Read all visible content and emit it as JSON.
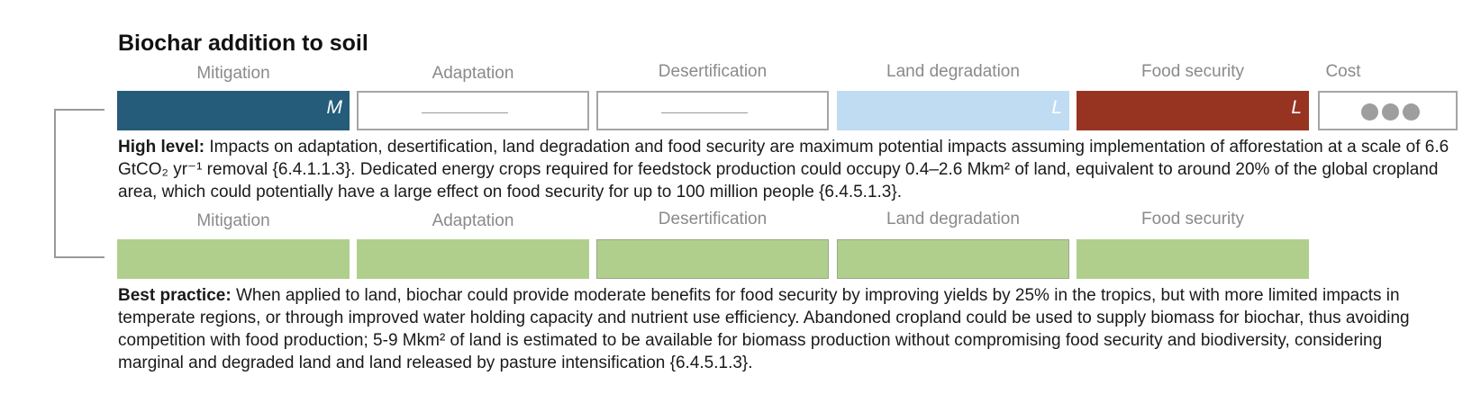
{
  "title": "Biochar addition to soil",
  "row1": {
    "headers": [
      "Mitigation",
      "Adaptation",
      "Desertification",
      "Land degradation",
      "Food security",
      "Cost"
    ],
    "cells": [
      {
        "letter": "M",
        "color": "#245c7a"
      },
      {
        "letter": "",
        "color": "#ffffff"
      },
      {
        "letter": "",
        "color": "#ffffff"
      },
      {
        "letter": "L",
        "color": "#bfdcf2"
      },
      {
        "letter": "L",
        "color": "#973421"
      },
      {
        "letter": "",
        "color": "#ffffff"
      }
    ],
    "cost_level": 3
  },
  "high_level": {
    "label": "High level:",
    "text": " Impacts on adaptation, desertification, land degradation and food security are maximum potential impacts assuming implementation of afforestation at a scale of 6.6 GtCO₂ yr⁻¹ removal {6.4.1.1.3}. Dedicated energy crops required for feedstock production could occupy 0.4–2.6 Mkm² of land, equivalent to around 20% of the global cropland area, which could potentially have a large effect on food security for up to 100 million people {6.4.5.1.3}."
  },
  "row2": {
    "headers": [
      "Mitigation",
      "Adaptation",
      "Desertification",
      "Land degradation",
      "Food security"
    ],
    "color": "#b0cf8d"
  },
  "best_practice": {
    "label": "Best practice:",
    "text": " When applied to land, biochar could provide moderate benefits for food security by improving yields by 25% in the tropics, but with more limited impacts in temperate regions, or through improved water holding capacity and nutrient use efficiency. Abandoned cropland could be used to supply biomass for biochar, thus avoiding competition with food production; 5-9 Mkm² of land is estimated to be available for biomass production without compromising food security and biodiversity, considering marginal and degraded land and land released by pasture intensification {6.4.5.1.3}."
  }
}
